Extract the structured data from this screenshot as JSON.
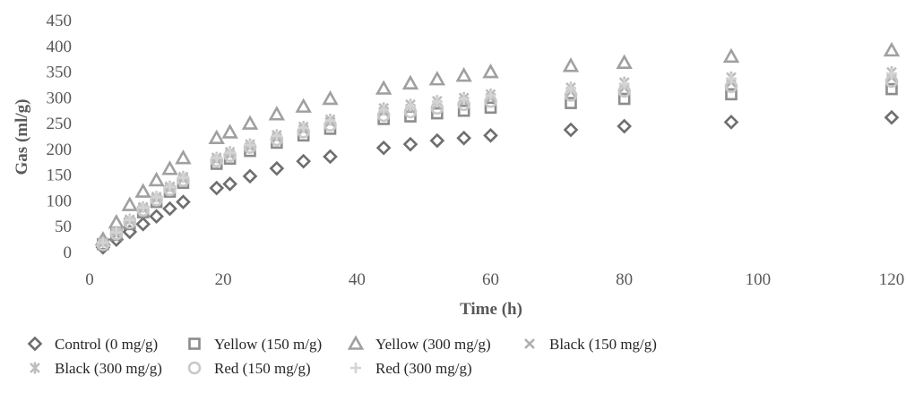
{
  "chart_data": {
    "type": "scatter",
    "title": "",
    "xlabel": "Time (h)",
    "ylabel": "Gas (ml/g)",
    "xlim": [
      0,
      120
    ],
    "ylim": [
      0,
      450
    ],
    "xticks": [
      0,
      20,
      40,
      60,
      80,
      100,
      120
    ],
    "yticks": [
      0,
      50,
      100,
      150,
      200,
      250,
      300,
      350,
      400,
      450
    ],
    "grid": false,
    "legend_position": "bottom",
    "x": [
      2,
      4,
      6,
      8,
      10,
      12,
      14,
      19,
      21,
      24,
      28,
      32,
      36,
      44,
      48,
      52,
      56,
      60,
      72,
      80,
      96,
      120
    ],
    "series": [
      {
        "name": "Control (0 mg/g)",
        "marker": "diamond",
        "color": "#6e6e6e",
        "values": [
          10,
          25,
          40,
          55,
          70,
          85,
          98,
          125,
          133,
          148,
          163,
          177,
          186,
          203,
          210,
          217,
          222,
          227,
          238,
          245,
          253,
          262
        ]
      },
      {
        "name": "Yellow (150 m/g)",
        "marker": "square",
        "color": "#8c8c8c",
        "values": [
          16,
          34,
          55,
          78,
          98,
          118,
          135,
          172,
          182,
          197,
          213,
          227,
          240,
          259,
          264,
          270,
          275,
          281,
          290,
          298,
          307,
          317
        ]
      },
      {
        "name": "Yellow (300 mg/g)",
        "marker": "triangle",
        "color": "#a0a0a0",
        "values": [
          25,
          58,
          92,
          118,
          140,
          162,
          183,
          222,
          233,
          250,
          268,
          283,
          298,
          318,
          328,
          336,
          343,
          350,
          362,
          368,
          380,
          392
        ]
      },
      {
        "name": "Black (150 mg/g)",
        "marker": "x",
        "color": "#b0b0b0",
        "values": [
          18,
          38,
          62,
          85,
          105,
          125,
          143,
          180,
          190,
          205,
          222,
          238,
          253,
          273,
          279,
          286,
          293,
          300,
          312,
          320,
          330,
          340
        ]
      },
      {
        "name": "Black (300 mg/g)",
        "marker": "asterisk",
        "color": "#bdbdbd",
        "values": [
          20,
          40,
          64,
          88,
          108,
          128,
          147,
          184,
          195,
          210,
          228,
          244,
          258,
          280,
          287,
          294,
          300,
          307,
          320,
          330,
          340,
          350
        ]
      },
      {
        "name": "Red (150 mg/g)",
        "marker": "circle",
        "color": "#c8c8c8",
        "values": [
          15,
          36,
          58,
          82,
          102,
          122,
          140,
          178,
          188,
          204,
          219,
          234,
          247,
          266,
          273,
          280,
          287,
          293,
          305,
          313,
          322,
          332
        ]
      },
      {
        "name": "Red (300 mg/g)",
        "marker": "plus",
        "color": "#d4d4d4",
        "values": [
          19,
          39,
          63,
          87,
          107,
          127,
          145,
          183,
          193,
          208,
          226,
          242,
          256,
          277,
          284,
          292,
          298,
          305,
          318,
          327,
          337,
          347
        ]
      }
    ]
  }
}
